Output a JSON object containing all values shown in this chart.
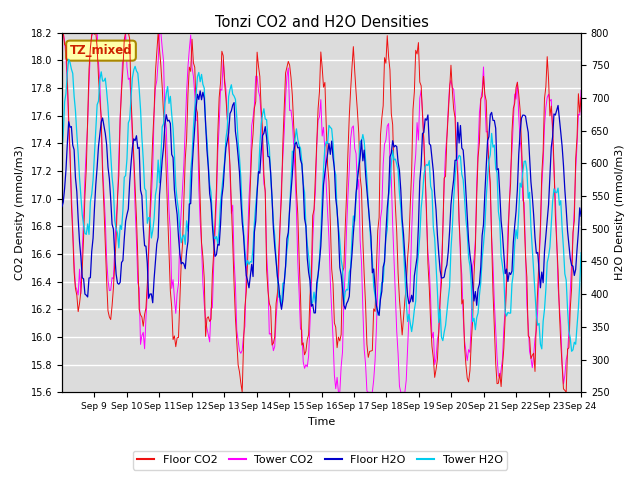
{
  "title": "Tonzi CO2 and H2O Densities",
  "xlabel": "Time",
  "ylabel_left": "CO2 Density (mmol/m3)",
  "ylabel_right": "H2O Density (mmol/m3)",
  "ylim_left": [
    15.6,
    18.2
  ],
  "ylim_right": [
    250,
    800
  ],
  "annotation_text": "TZ_mixed",
  "annotation_color": "#CC2200",
  "annotation_bg": "#FFFFAA",
  "annotation_edge": "#AA8800",
  "xtick_labels": [
    "Sep 9",
    "Sep 10",
    "Sep 11",
    "Sep 12",
    "Sep 13",
    "Sep 14",
    "Sep 15",
    "Sep 16",
    "Sep 17",
    "Sep 18",
    "Sep 19",
    "Sep 20",
    "Sep 21",
    "Sep 22",
    "Sep 23",
    "Sep 24"
  ],
  "colors": {
    "floor_co2": "#EE1111",
    "tower_co2": "#FF00FF",
    "floor_h2o": "#0000CC",
    "tower_h2o": "#00CCEE"
  },
  "legend_labels": [
    "Floor CO2",
    "Tower CO2",
    "Floor H2O",
    "Tower H2O"
  ],
  "background_color": "#DCDCDC",
  "grid_color": "#FFFFFF",
  "fig_bg": "#FFFFFF"
}
